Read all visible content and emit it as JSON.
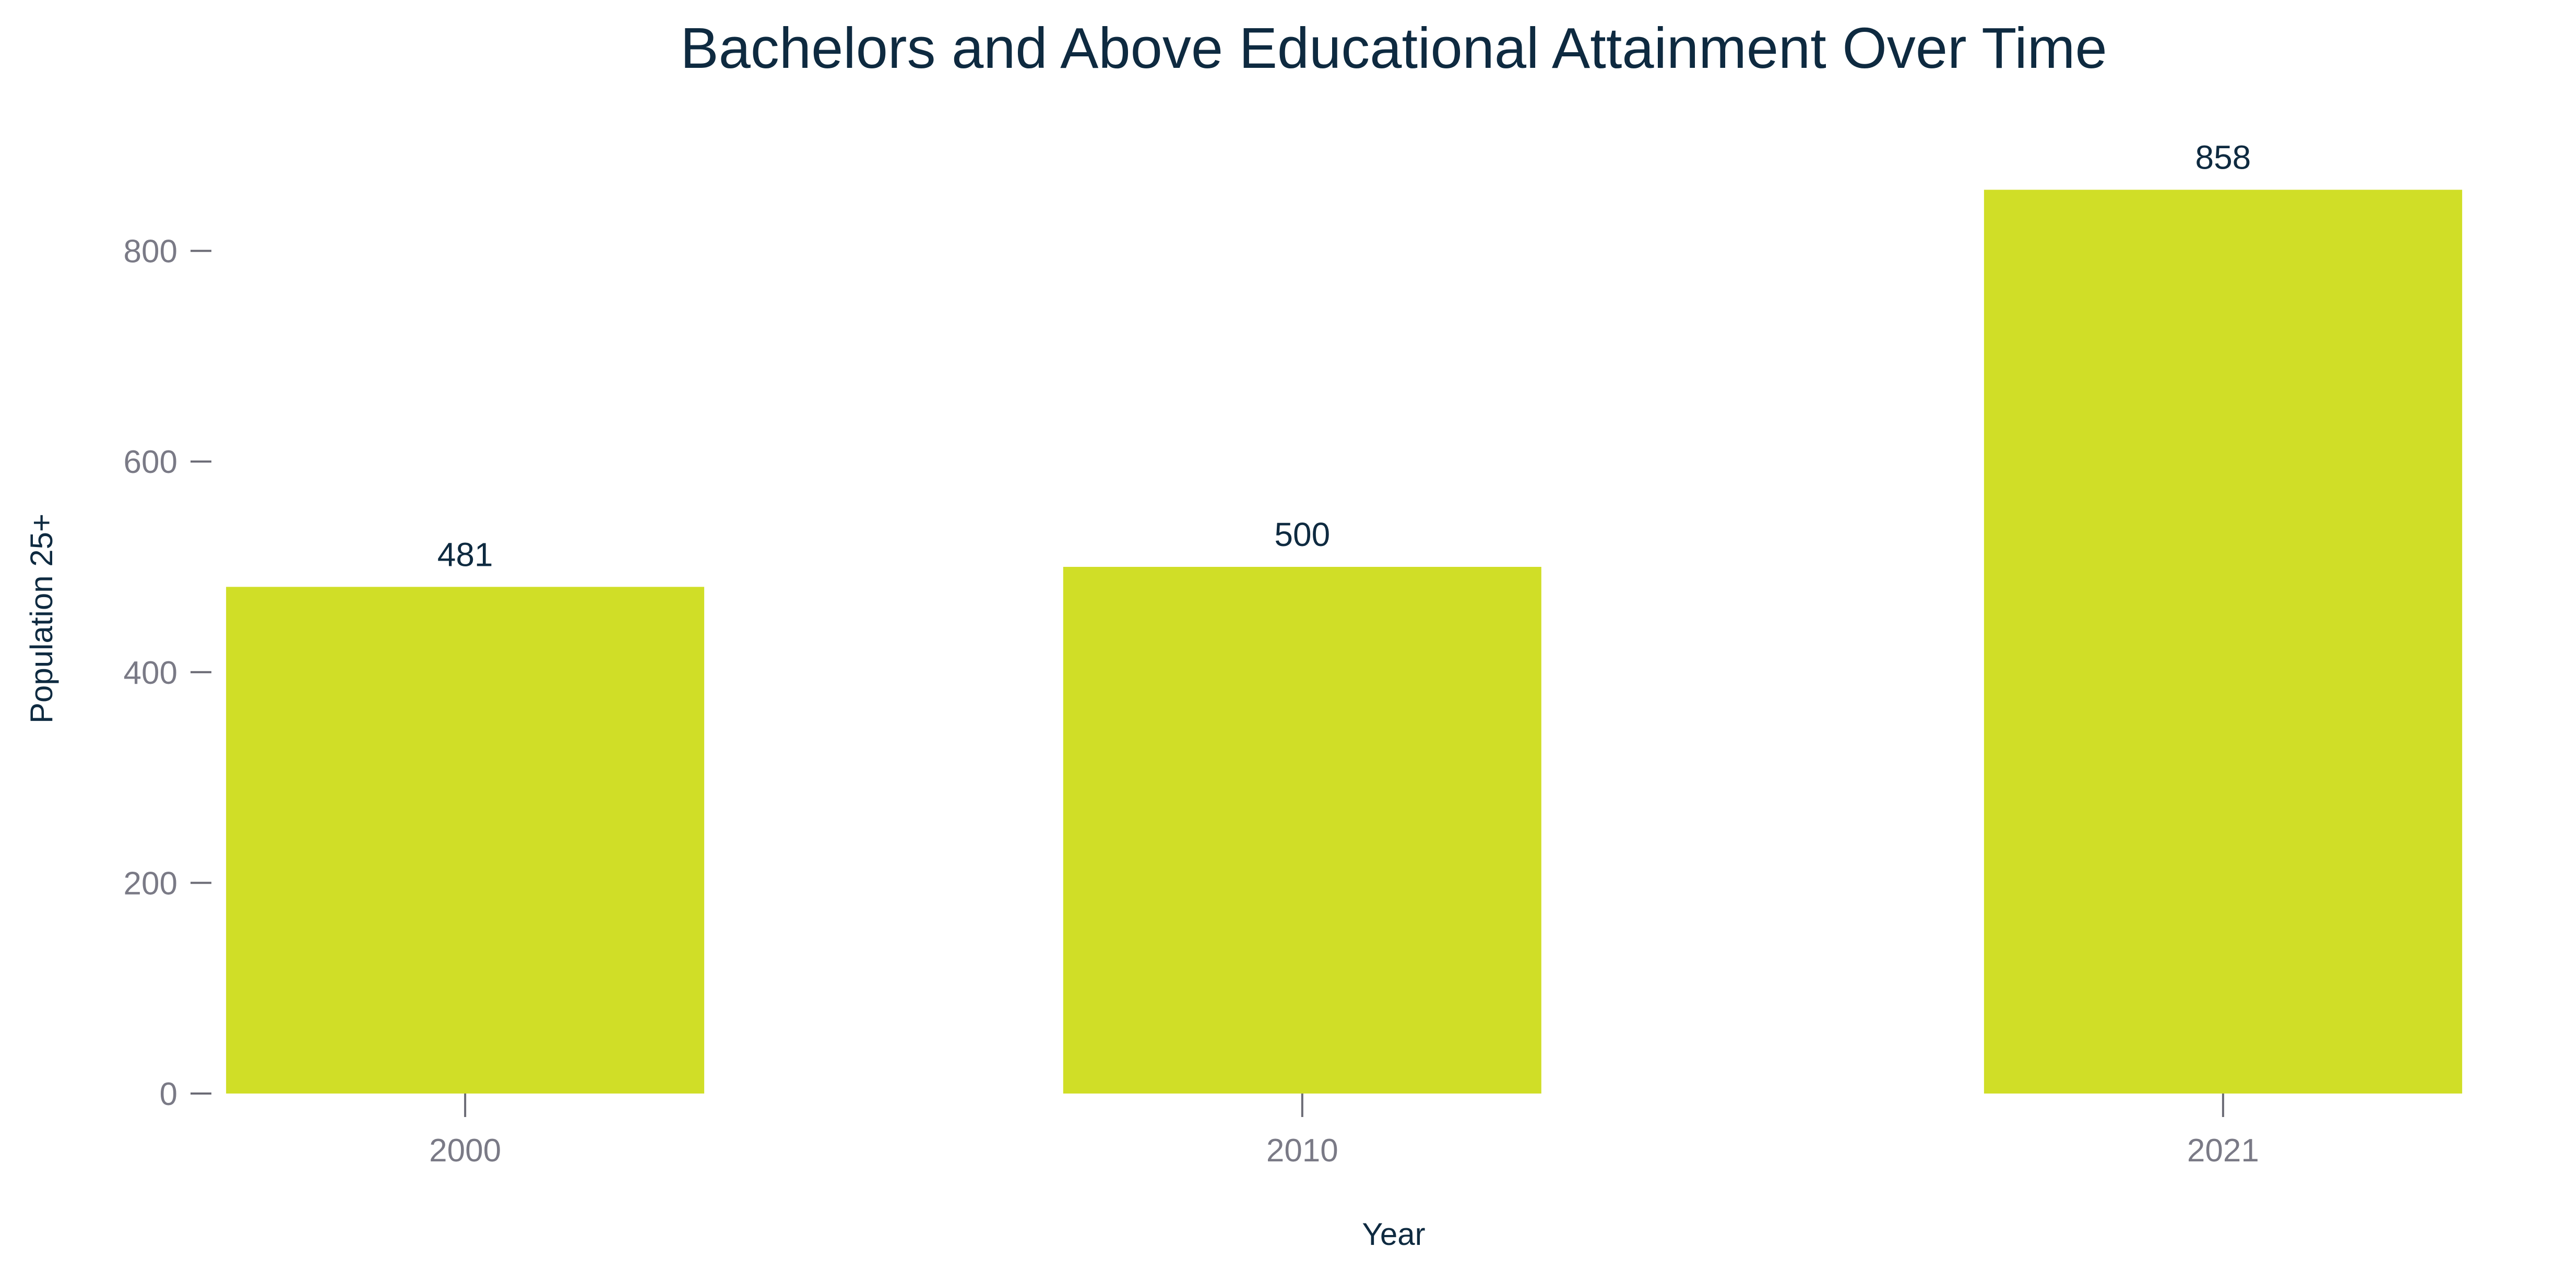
{
  "chart_data": {
    "type": "bar",
    "title": "Bachelors and Above Educational Attainment Over Time",
    "xlabel": "Year",
    "ylabel": "Population 25+",
    "categories": [
      "2000",
      "2010",
      "2021"
    ],
    "x": [
      2000,
      2010,
      2021
    ],
    "values": [
      481,
      500,
      858
    ],
    "data_labels": [
      "481",
      "500",
      "858"
    ],
    "ylim": [
      0,
      900
    ],
    "xlim": [
      1997,
      2024
    ],
    "yticks": [
      0,
      200,
      400,
      600,
      800
    ],
    "ytick_labels": [
      "0",
      "200",
      "400",
      "600",
      "800"
    ],
    "xtick_labels": [
      "2000",
      "2010",
      "2021"
    ],
    "grid": false,
    "legend": "none",
    "colors": {
      "bar": "#d0de27",
      "title": "#0e2a40",
      "ticks": "#7a7a86"
    }
  }
}
